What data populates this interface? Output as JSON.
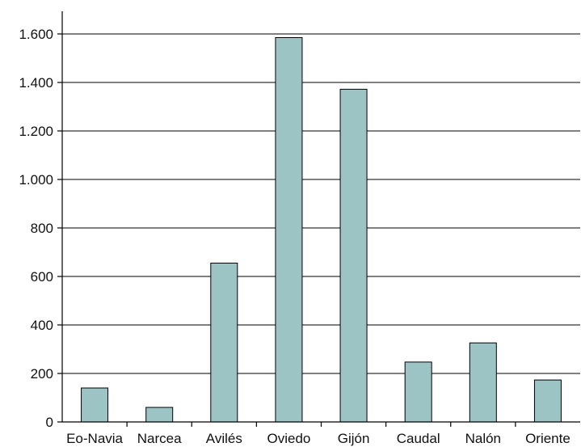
{
  "chart_data": {
    "type": "bar",
    "categories": [
      "Eo-Navia",
      "Narcea",
      "Avilés",
      "Oviedo",
      "Gijón",
      "Caudal",
      "Nalón",
      "Oriente"
    ],
    "values": [
      140,
      60,
      655,
      1585,
      1372,
      247,
      326,
      173
    ],
    "yticks": [
      0,
      200,
      400,
      600,
      800,
      1000,
      1200,
      1400,
      1600
    ],
    "ytick_labels": [
      "0",
      "200",
      "400",
      "600",
      "800",
      "1.000",
      "1.200",
      "1.400",
      "1.600"
    ],
    "ylim": [
      0,
      1600
    ],
    "grid": true,
    "bar_color": "#9cc4c4",
    "title": "",
    "xlabel": "",
    "ylabel": ""
  }
}
